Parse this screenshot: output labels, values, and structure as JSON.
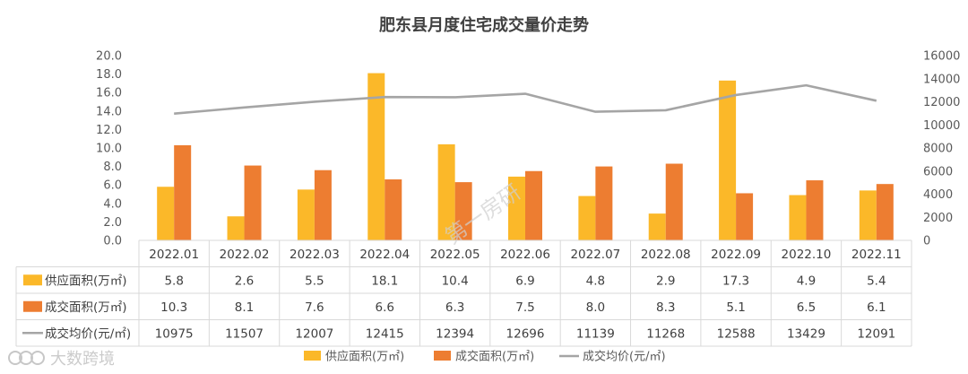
{
  "chart_data": {
    "type": "bar",
    "title": "肥东县月度住宅成交量价走势",
    "categories": [
      "2022.01",
      "2022.02",
      "2022.03",
      "2022.04",
      "2022.05",
      "2022.06",
      "2022.07",
      "2022.08",
      "2022.09",
      "2022.10",
      "2022.11"
    ],
    "series": [
      {
        "name": "供应面积(万㎡)",
        "type": "bar",
        "axis": "left",
        "color": "#FBB829",
        "values": [
          5.8,
          2.6,
          5.5,
          18.1,
          10.4,
          6.9,
          4.8,
          2.9,
          17.3,
          4.9,
          5.4
        ],
        "labels": [
          "5.8",
          "2.6",
          "5.5",
          "18.1",
          "10.4",
          "6.9",
          "4.8",
          "2.9",
          "17.3",
          "4.9",
          "5.4"
        ]
      },
      {
        "name": "成交面积(万㎡)",
        "type": "bar",
        "axis": "left",
        "color": "#ED7D31",
        "values": [
          10.3,
          8.1,
          7.6,
          6.6,
          6.3,
          7.5,
          8.0,
          8.3,
          5.1,
          6.5,
          6.1
        ],
        "labels": [
          "10.3",
          "8.1",
          "7.6",
          "6.6",
          "6.3",
          "7.5",
          "8.0",
          "8.3",
          "5.1",
          "6.5",
          "6.1"
        ]
      },
      {
        "name": "成交均价(元/㎡)",
        "type": "line",
        "axis": "right",
        "color": "#A5A5A5",
        "values": [
          10975,
          11507,
          12007,
          12415,
          12394,
          12696,
          11139,
          11268,
          12588,
          13429,
          12091
        ],
        "labels": [
          "10975",
          "11507",
          "12007",
          "12415",
          "12394",
          "12696",
          "11139",
          "11268",
          "12588",
          "13429",
          "12091"
        ]
      }
    ],
    "y_left": {
      "min": 0,
      "max": 20,
      "step": 2,
      "ticks": [
        "0.0",
        "2.0",
        "4.0",
        "6.0",
        "8.0",
        "10.0",
        "12.0",
        "14.0",
        "16.0",
        "18.0",
        "20.0"
      ]
    },
    "y_right": {
      "min": 0,
      "max": 16000,
      "step": 2000,
      "ticks": [
        "0",
        "2000",
        "4000",
        "6000",
        "8000",
        "10000",
        "12000",
        "14000",
        "16000"
      ]
    },
    "legend_position": "bottom-center",
    "data_table": true
  },
  "watermarks": {
    "center": "第一房研",
    "bottom_left_logo": "大数跨境"
  }
}
